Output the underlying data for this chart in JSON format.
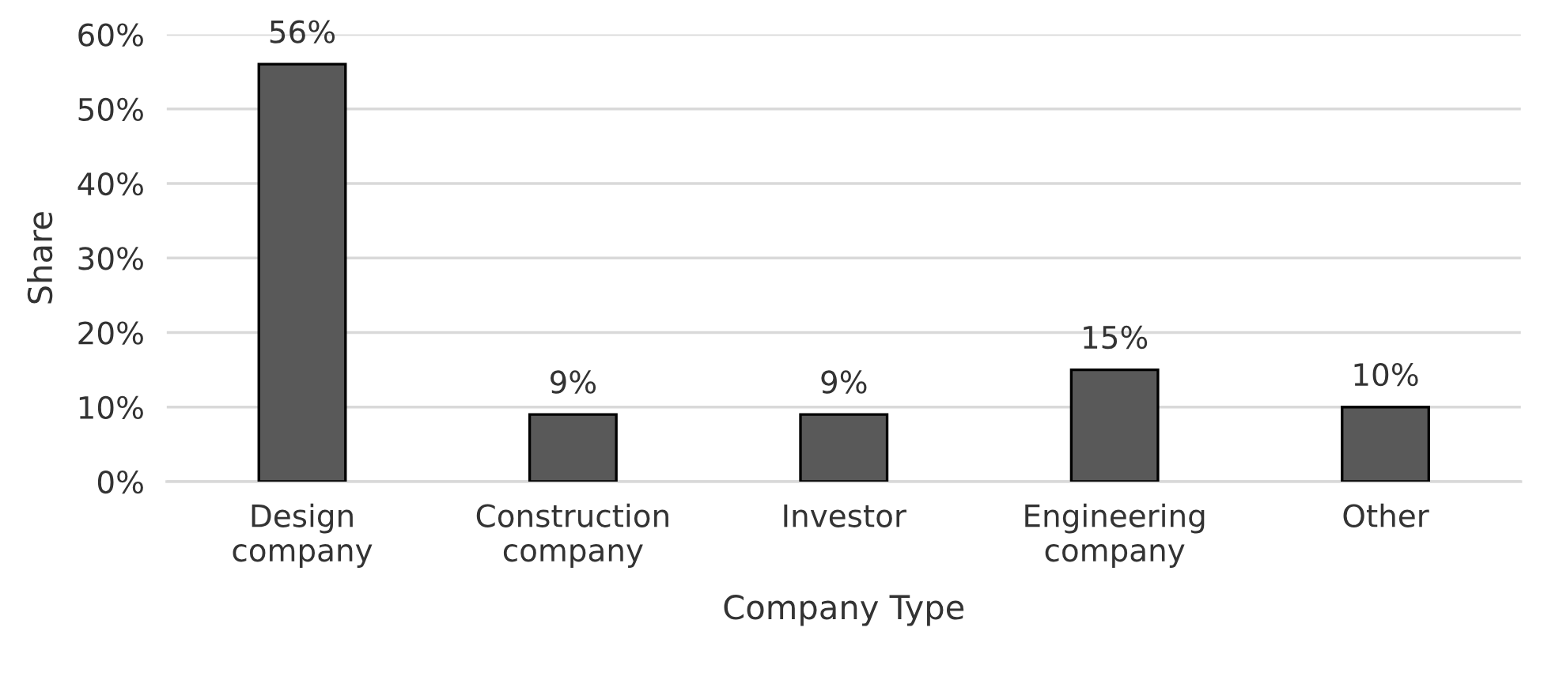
{
  "chart_data": {
    "type": "bar",
    "xlabel": "Company Type",
    "ylabel": "Share",
    "categories": [
      "Design\ncompany",
      "Construction\ncompany",
      "Investor",
      "Engineering\ncompany",
      "Other"
    ],
    "values": [
      56,
      9,
      9,
      15,
      10
    ],
    "value_labels": [
      "56%",
      "9%",
      "9%",
      "15%",
      "10%"
    ],
    "color": "#595959",
    "ylim": [
      0,
      60
    ],
    "yticks": [
      {
        "value": 0,
        "label": "0%"
      },
      {
        "value": 10,
        "label": "10%"
      },
      {
        "value": 20,
        "label": "20%"
      },
      {
        "value": 30,
        "label": "30%"
      },
      {
        "value": 40,
        "label": "40%"
      },
      {
        "value": 50,
        "label": "50%"
      },
      {
        "value": 60,
        "label": "60%"
      }
    ],
    "grid": "y",
    "legend": false
  }
}
